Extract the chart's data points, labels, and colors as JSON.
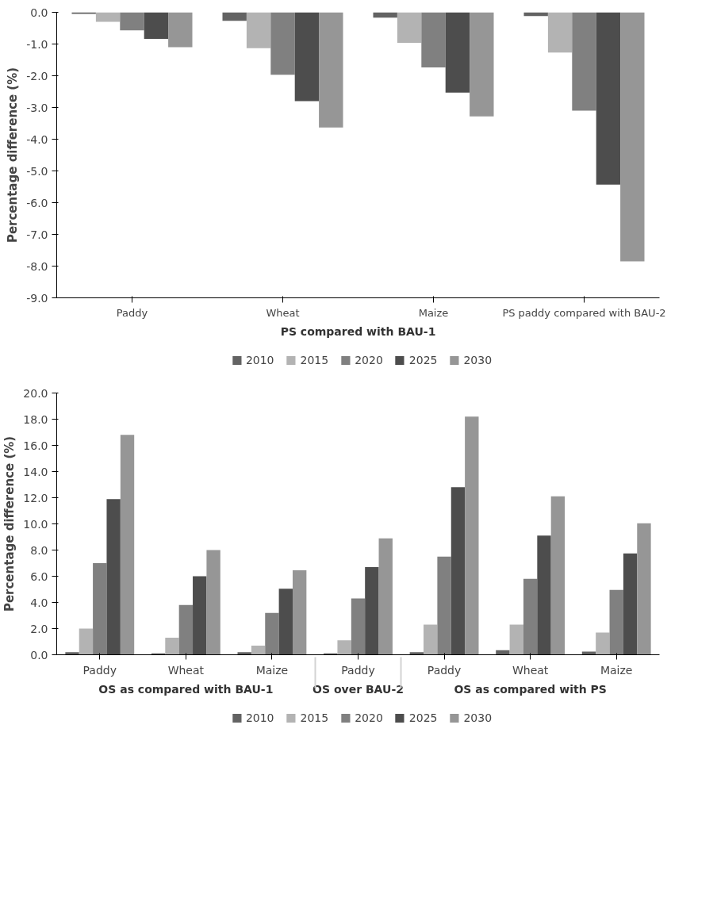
{
  "chart_data": [
    {
      "type": "bar",
      "ylabel": "Percentage difference (%)",
      "categories": [
        "Paddy",
        "Wheat",
        "Maize",
        "PS paddy compared with BAU-2"
      ],
      "annotations": [
        "PS compared with BAU-1"
      ],
      "series": [
        {
          "name": "2010",
          "color": "#636363",
          "values": [
            -0.05,
            -0.27,
            -0.17,
            -0.12
          ]
        },
        {
          "name": "2015",
          "color": "#b3b3b3",
          "values": [
            -0.3,
            -1.13,
            -0.96,
            -1.27
          ]
        },
        {
          "name": "2020",
          "color": "#808080",
          "values": [
            -0.57,
            -1.97,
            -1.74,
            -3.1
          ]
        },
        {
          "name": "2025",
          "color": "#4d4d4d",
          "values": [
            -0.84,
            -2.8,
            -2.53,
            -5.43
          ]
        },
        {
          "name": "2030",
          "color": "#969696",
          "values": [
            -1.1,
            -3.63,
            -3.28,
            -7.85
          ]
        }
      ],
      "ylim": [
        -9,
        0
      ],
      "yticks": [
        {
          "value": -9,
          "label": "-9.0"
        },
        {
          "value": -8,
          "label": "-8.0"
        },
        {
          "value": -7,
          "label": "-7.0"
        },
        {
          "value": -6,
          "label": "-6.0"
        },
        {
          "value": -5,
          "label": "-5.0"
        },
        {
          "value": -4,
          "label": "-4.0"
        },
        {
          "value": -3,
          "label": "-3.0"
        },
        {
          "value": -2,
          "label": "-2.0"
        },
        {
          "value": -1,
          "label": "-1.0"
        },
        {
          "value": 0,
          "label": "0.0"
        }
      ],
      "grid": false,
      "legend": "bottom"
    },
    {
      "type": "bar",
      "ylabel": "Percentage difference (%)",
      "categories": [
        "Paddy",
        "Wheat",
        "Maize",
        "Paddy",
        "Paddy",
        "Wheat",
        "Maize"
      ],
      "annotations": [
        "OS as compared with BAU-1",
        "OS over BAU-2",
        "OS as compared with PS"
      ],
      "series": [
        {
          "name": "2010",
          "color": "#636363",
          "values": [
            0.2,
            0.1,
            0.2,
            0.1,
            0.2,
            0.35,
            0.25
          ]
        },
        {
          "name": "2015",
          "color": "#b3b3b3",
          "values": [
            2.0,
            1.3,
            0.7,
            1.1,
            2.3,
            2.3,
            1.7
          ]
        },
        {
          "name": "2020",
          "color": "#808080",
          "values": [
            7.0,
            3.8,
            3.2,
            4.3,
            7.5,
            5.8,
            4.95
          ]
        },
        {
          "name": "2025",
          "color": "#4d4d4d",
          "values": [
            11.9,
            6.0,
            5.05,
            6.7,
            12.8,
            9.1,
            7.75
          ]
        },
        {
          "name": "2030",
          "color": "#969696",
          "values": [
            16.8,
            8.0,
            6.45,
            8.9,
            18.2,
            12.1,
            10.05
          ]
        }
      ],
      "ylim": [
        0,
        20
      ],
      "yticks": [
        {
          "value": 0,
          "label": "0.0"
        },
        {
          "value": 2,
          "label": "2.0"
        },
        {
          "value": 4,
          "label": "4.0"
        },
        {
          "value": 6,
          "label": "6.0"
        },
        {
          "value": 8,
          "label": "8.0"
        },
        {
          "value": 10,
          "label": "10.0"
        },
        {
          "value": 12,
          "label": "12.0"
        },
        {
          "value": 14,
          "label": "14.0"
        },
        {
          "value": 16,
          "label": "16.0"
        },
        {
          "value": 18,
          "label": "18.0"
        },
        {
          "value": 20,
          "label": "20.0"
        }
      ],
      "grid": false,
      "legend": "bottom"
    }
  ]
}
